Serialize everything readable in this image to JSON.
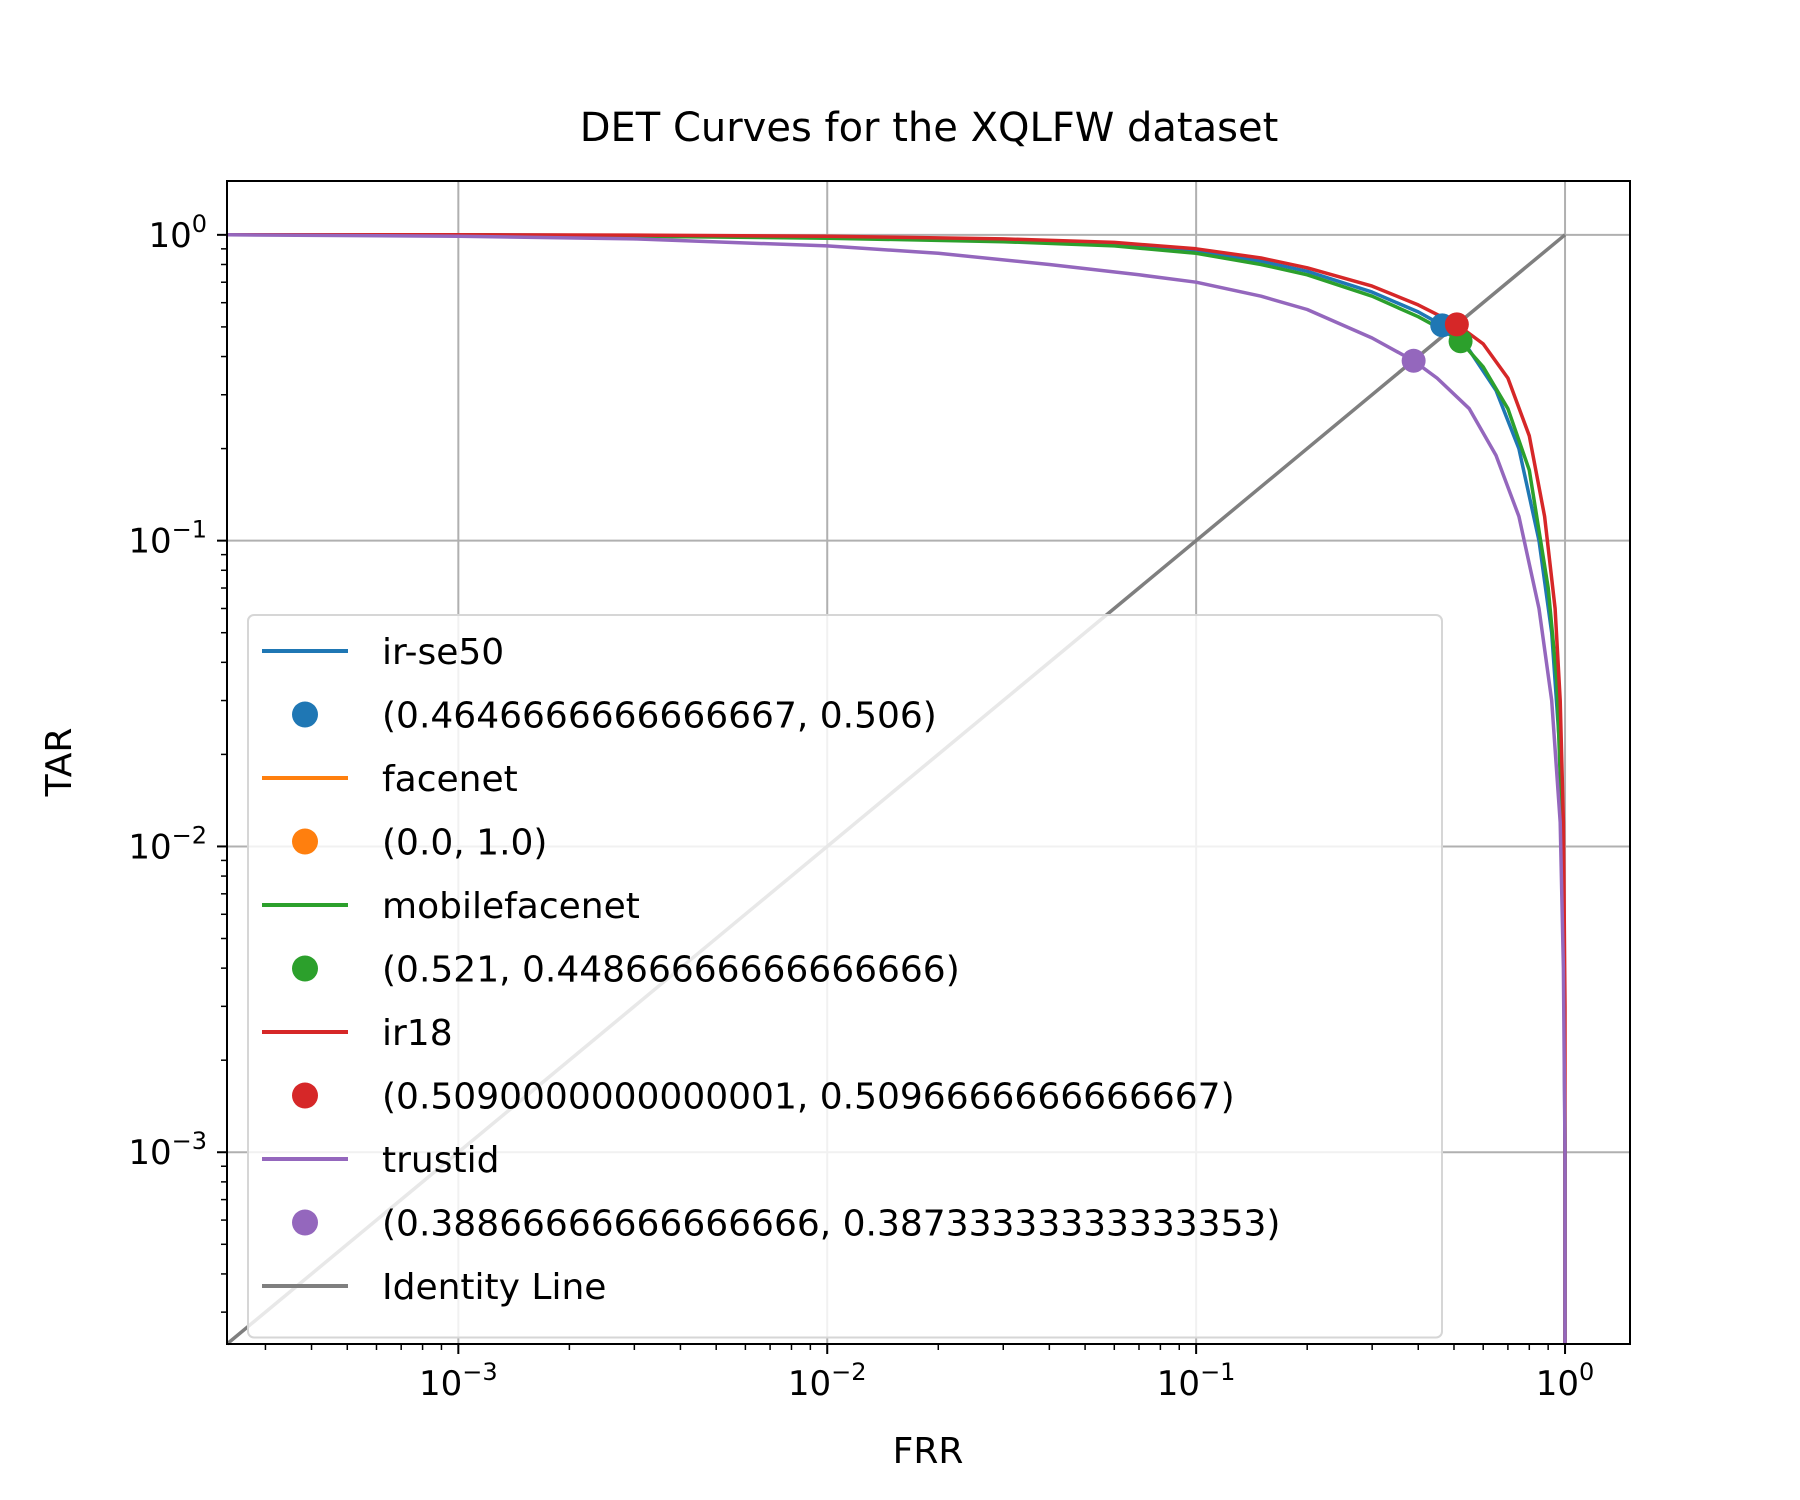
{
  "chart_data": {
    "type": "line",
    "title": "DET Curves for the XQLFW dataset",
    "xlabel": "FRR",
    "ylabel": "TAR",
    "xscale": "log",
    "yscale": "log",
    "xlim": [
      0.000236,
      1.5
    ],
    "ylim": [
      0.000236,
      1.5
    ],
    "grid": true,
    "legend_position": "lower-left",
    "x_tick_labels": [
      {
        "value": 0.001,
        "base": "10",
        "exp": "−3"
      },
      {
        "value": 0.01,
        "base": "10",
        "exp": "−2"
      },
      {
        "value": 0.1,
        "base": "10",
        "exp": "−1"
      },
      {
        "value": 1,
        "base": "10",
        "exp": "0"
      }
    ],
    "y_tick_labels": [
      {
        "value": 0.001,
        "base": "10",
        "exp": "−3"
      },
      {
        "value": 0.01,
        "base": "10",
        "exp": "−2"
      },
      {
        "value": 0.1,
        "base": "10",
        "exp": "−1"
      },
      {
        "value": 1,
        "base": "10",
        "exp": "0"
      }
    ],
    "series": [
      {
        "name": "ir-se50",
        "color": "#1f77b4",
        "x": [
          0.000236,
          0.001,
          0.003,
          0.01,
          0.03,
          0.06,
          0.1,
          0.15,
          0.2,
          0.3,
          0.4,
          0.4647,
          0.55,
          0.65,
          0.75,
          0.85,
          0.92,
          0.97,
          0.99,
          1.0,
          1.0
        ],
        "y": [
          1.0,
          1.0,
          0.995,
          0.985,
          0.96,
          0.93,
          0.88,
          0.82,
          0.76,
          0.65,
          0.56,
          0.506,
          0.42,
          0.31,
          0.2,
          0.1,
          0.05,
          0.02,
          0.008,
          0.001,
          0.000236
        ],
        "marker": {
          "x": 0.4646666666666667,
          "y": 0.506,
          "label": "(0.4646666666666667, 0.506)"
        }
      },
      {
        "name": "facenet",
        "color": "#ff7f0e",
        "x": [],
        "y": [],
        "marker": {
          "x": 0.0,
          "y": 1.0,
          "label": "(0.0, 1.0)"
        }
      },
      {
        "name": "mobilefacenet",
        "color": "#2ca02c",
        "x": [
          0.000236,
          0.001,
          0.003,
          0.01,
          0.03,
          0.06,
          0.1,
          0.15,
          0.2,
          0.3,
          0.4,
          0.45,
          0.521,
          0.6,
          0.7,
          0.8,
          0.9,
          0.95,
          0.98,
          0.995,
          1.0,
          1.0
        ],
        "y": [
          1.0,
          1.0,
          0.99,
          0.975,
          0.95,
          0.92,
          0.87,
          0.8,
          0.74,
          0.63,
          0.54,
          0.5,
          0.4487,
          0.37,
          0.27,
          0.17,
          0.07,
          0.035,
          0.012,
          0.004,
          0.001,
          0.000236
        ],
        "marker": {
          "x": 0.521,
          "y": 0.44866666666666666,
          "label": "(0.521, 0.44866666666666666)"
        }
      },
      {
        "name": "ir18",
        "color": "#d62728",
        "x": [
          0.000236,
          0.001,
          0.003,
          0.01,
          0.03,
          0.06,
          0.1,
          0.15,
          0.2,
          0.3,
          0.4,
          0.509,
          0.6,
          0.7,
          0.8,
          0.88,
          0.94,
          0.97,
          0.99,
          1.0,
          1.0
        ],
        "y": [
          1.0,
          1.0,
          0.998,
          0.99,
          0.97,
          0.945,
          0.9,
          0.84,
          0.78,
          0.68,
          0.59,
          0.5097,
          0.44,
          0.34,
          0.22,
          0.12,
          0.06,
          0.03,
          0.012,
          0.003,
          0.000236
        ],
        "marker": {
          "x": 0.5090000000000001,
          "y": 0.5096666666666667,
          "label": "(0.5090000000000001, 0.5096666666666667)"
        }
      },
      {
        "name": "trustid",
        "color": "#9467bd",
        "x": [
          0.000236,
          0.001,
          0.003,
          0.01,
          0.02,
          0.04,
          0.07,
          0.1,
          0.15,
          0.2,
          0.3,
          0.3887,
          0.45,
          0.55,
          0.65,
          0.75,
          0.85,
          0.92,
          0.97,
          0.99,
          1.0,
          1.0
        ],
        "y": [
          1.0,
          0.99,
          0.97,
          0.92,
          0.87,
          0.8,
          0.74,
          0.7,
          0.63,
          0.57,
          0.46,
          0.3873,
          0.34,
          0.27,
          0.19,
          0.12,
          0.06,
          0.03,
          0.012,
          0.004,
          0.001,
          0.000236
        ],
        "marker": {
          "x": 0.38866666666666666,
          "y": 0.3873333333333335,
          "label": "(0.38866666666666666, 0.38733333333333353)"
        }
      },
      {
        "name": "Identity Line",
        "color": "#7f7f7f",
        "x": [
          0.000236,
          1.0
        ],
        "y": [
          0.000236,
          1.0
        ]
      }
    ]
  }
}
